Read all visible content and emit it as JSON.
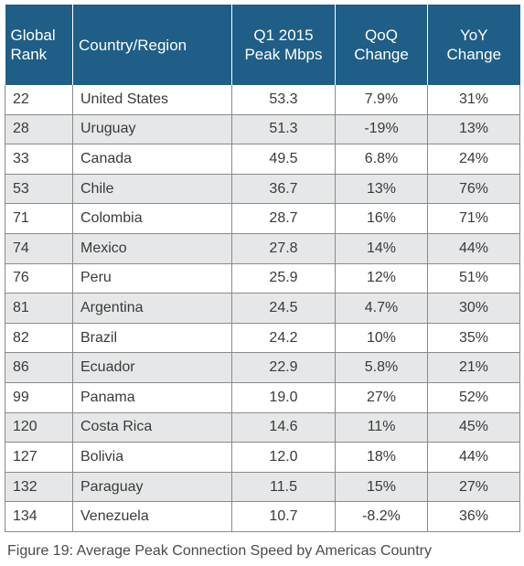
{
  "table": {
    "headers": {
      "rank": "Global Rank",
      "country": "Country/Region",
      "peak": "Q1 2015 Peak Mbps",
      "qoq": "QoQ Change",
      "yoy": "YoY Change"
    },
    "rows": [
      {
        "rank": "22",
        "country": "United States",
        "peak": "53.3",
        "qoq": "7.9%",
        "yoy": "31%"
      },
      {
        "rank": "28",
        "country": "Uruguay",
        "peak": "51.3",
        "qoq": "-19%",
        "yoy": "13%"
      },
      {
        "rank": "33",
        "country": "Canada",
        "peak": "49.5",
        "qoq": "6.8%",
        "yoy": "24%"
      },
      {
        "rank": "53",
        "country": "Chile",
        "peak": "36.7",
        "qoq": "13%",
        "yoy": "76%"
      },
      {
        "rank": "71",
        "country": "Colombia",
        "peak": "28.7",
        "qoq": "16%",
        "yoy": "71%"
      },
      {
        "rank": "74",
        "country": "Mexico",
        "peak": "27.8",
        "qoq": "14%",
        "yoy": "44%"
      },
      {
        "rank": "76",
        "country": "Peru",
        "peak": "25.9",
        "qoq": "12%",
        "yoy": "51%"
      },
      {
        "rank": "81",
        "country": "Argentina",
        "peak": "24.5",
        "qoq": "4.7%",
        "yoy": "30%"
      },
      {
        "rank": "82",
        "country": "Brazil",
        "peak": "24.2",
        "qoq": "10%",
        "yoy": "35%"
      },
      {
        "rank": "86",
        "country": "Ecuador",
        "peak": "22.9",
        "qoq": "5.8%",
        "yoy": "21%"
      },
      {
        "rank": "99",
        "country": "Panama",
        "peak": "19.0",
        "qoq": "27%",
        "yoy": "52%"
      },
      {
        "rank": "120",
        "country": "Costa Rica",
        "peak": "14.6",
        "qoq": "11%",
        "yoy": "45%"
      },
      {
        "rank": "127",
        "country": "Bolivia",
        "peak": "12.0",
        "qoq": "18%",
        "yoy": "44%"
      },
      {
        "rank": "132",
        "country": "Paraguay",
        "peak": "11.5",
        "qoq": "15%",
        "yoy": "27%"
      },
      {
        "rank": "134",
        "country": "Venezuela",
        "peak": "10.7",
        "qoq": "-8.2%",
        "yoy": "36%"
      }
    ]
  },
  "caption": "Figure 19: Average Peak Connection Speed by Americas Country",
  "colors": {
    "header_bg": "#1f5e86",
    "header_text": "#ffffff",
    "stripe_bg": "#e6e7e8"
  }
}
